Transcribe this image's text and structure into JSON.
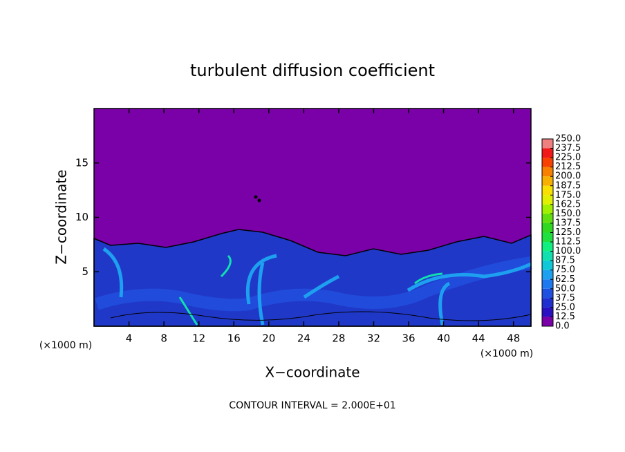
{
  "chart_data": {
    "type": "contour",
    "title": "turbulent diffusion coefficient",
    "x_label": "X−coordinate",
    "y_label": "Z−coordinate",
    "x_unit_labels": [
      "(×1000 m)",
      "(×1000 m)"
    ],
    "note": "CONTOUR INTERVAL = 2.000E+01",
    "xlim": [
      0,
      50
    ],
    "xticks": [
      4,
      8,
      12,
      16,
      20,
      24,
      28,
      32,
      36,
      40,
      44,
      48
    ],
    "ylim": [
      0,
      20
    ],
    "yticks": [
      5,
      10,
      15
    ],
    "colorbar": {
      "ticks": [
        {
          "value": 0,
          "label": "0.0"
        },
        {
          "value": 12.5,
          "label": "12.5"
        },
        {
          "value": 25,
          "label": "25.0"
        },
        {
          "value": 37.5,
          "label": "37.5"
        },
        {
          "value": 50,
          "label": "50.0"
        },
        {
          "value": 62.5,
          "label": "62.5"
        },
        {
          "value": 75,
          "label": "75.0"
        },
        {
          "value": 87.5,
          "label": "87.5"
        },
        {
          "value": 100,
          "label": "100.0"
        },
        {
          "value": 112.5,
          "label": "112.5"
        },
        {
          "value": 125,
          "label": "125.0"
        },
        {
          "value": 137.5,
          "label": "137.5"
        },
        {
          "value": 150,
          "label": "150.0"
        },
        {
          "value": 162.5,
          "label": "162.5"
        },
        {
          "value": 175,
          "label": "175.0"
        },
        {
          "value": 187.5,
          "label": "187.5"
        },
        {
          "value": 200,
          "label": "200.0"
        },
        {
          "value": 212.5,
          "label": "212.5"
        },
        {
          "value": 225,
          "label": "225.0"
        },
        {
          "value": 237.5,
          "label": "237.5"
        },
        {
          "value": 250,
          "label": "250.0"
        }
      ],
      "colors": [
        "#7a00a8",
        "#2a10c0",
        "#2030d0",
        "#2050e0",
        "#1e78f0",
        "#1ea0f0",
        "#10c8d8",
        "#10e0b0",
        "#10f080",
        "#20e040",
        "#30d820",
        "#60e010",
        "#a0f000",
        "#e0f000",
        "#f8e000",
        "#f8b000",
        "#f88000",
        "#f84000",
        "#f01818",
        "#f08080"
      ]
    }
  }
}
